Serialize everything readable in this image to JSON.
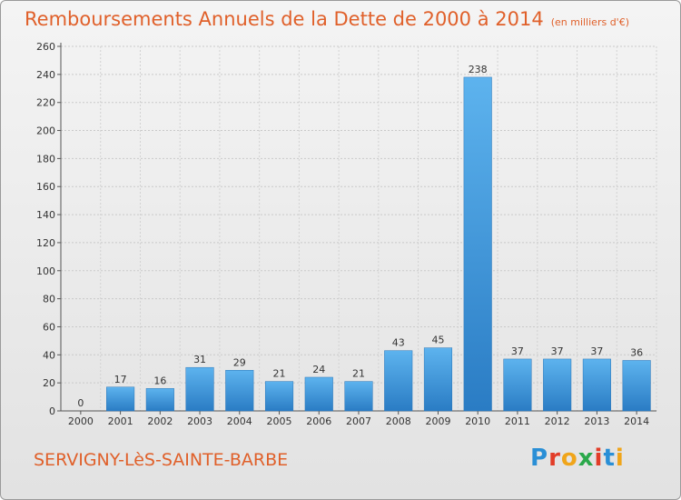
{
  "header": {
    "title": "Remboursements Annuels de la Dette de 2000 à 2014",
    "unit": "(en milliers d'€)"
  },
  "footer": {
    "commune": "SERVIGNY-LèS-SAINTE-BARBE",
    "logo": {
      "letters": [
        "P",
        "r",
        "o",
        "x",
        "i",
        "t",
        "i"
      ],
      "colors": [
        "#2a8fd6",
        "#e23d28",
        "#f0a51a",
        "#2aa84a",
        "#e23d28",
        "#2a8fd6",
        "#f0a51a"
      ]
    }
  },
  "chart_data": {
    "type": "bar",
    "title": "Remboursements Annuels de la Dette de 2000 à 2014",
    "categories": [
      "2000",
      "2001",
      "2002",
      "2003",
      "2004",
      "2005",
      "2006",
      "2007",
      "2008",
      "2009",
      "2010",
      "2011",
      "2012",
      "2013",
      "2014"
    ],
    "values": [
      0,
      17,
      16,
      31,
      29,
      21,
      24,
      21,
      43,
      45,
      238,
      37,
      37,
      37,
      36
    ],
    "ylim": [
      0,
      260
    ],
    "yticks": [
      0,
      20,
      40,
      60,
      80,
      100,
      120,
      140,
      160,
      180,
      200,
      220,
      240,
      260
    ],
    "grid": true,
    "bar_color": "#3a93d8"
  }
}
